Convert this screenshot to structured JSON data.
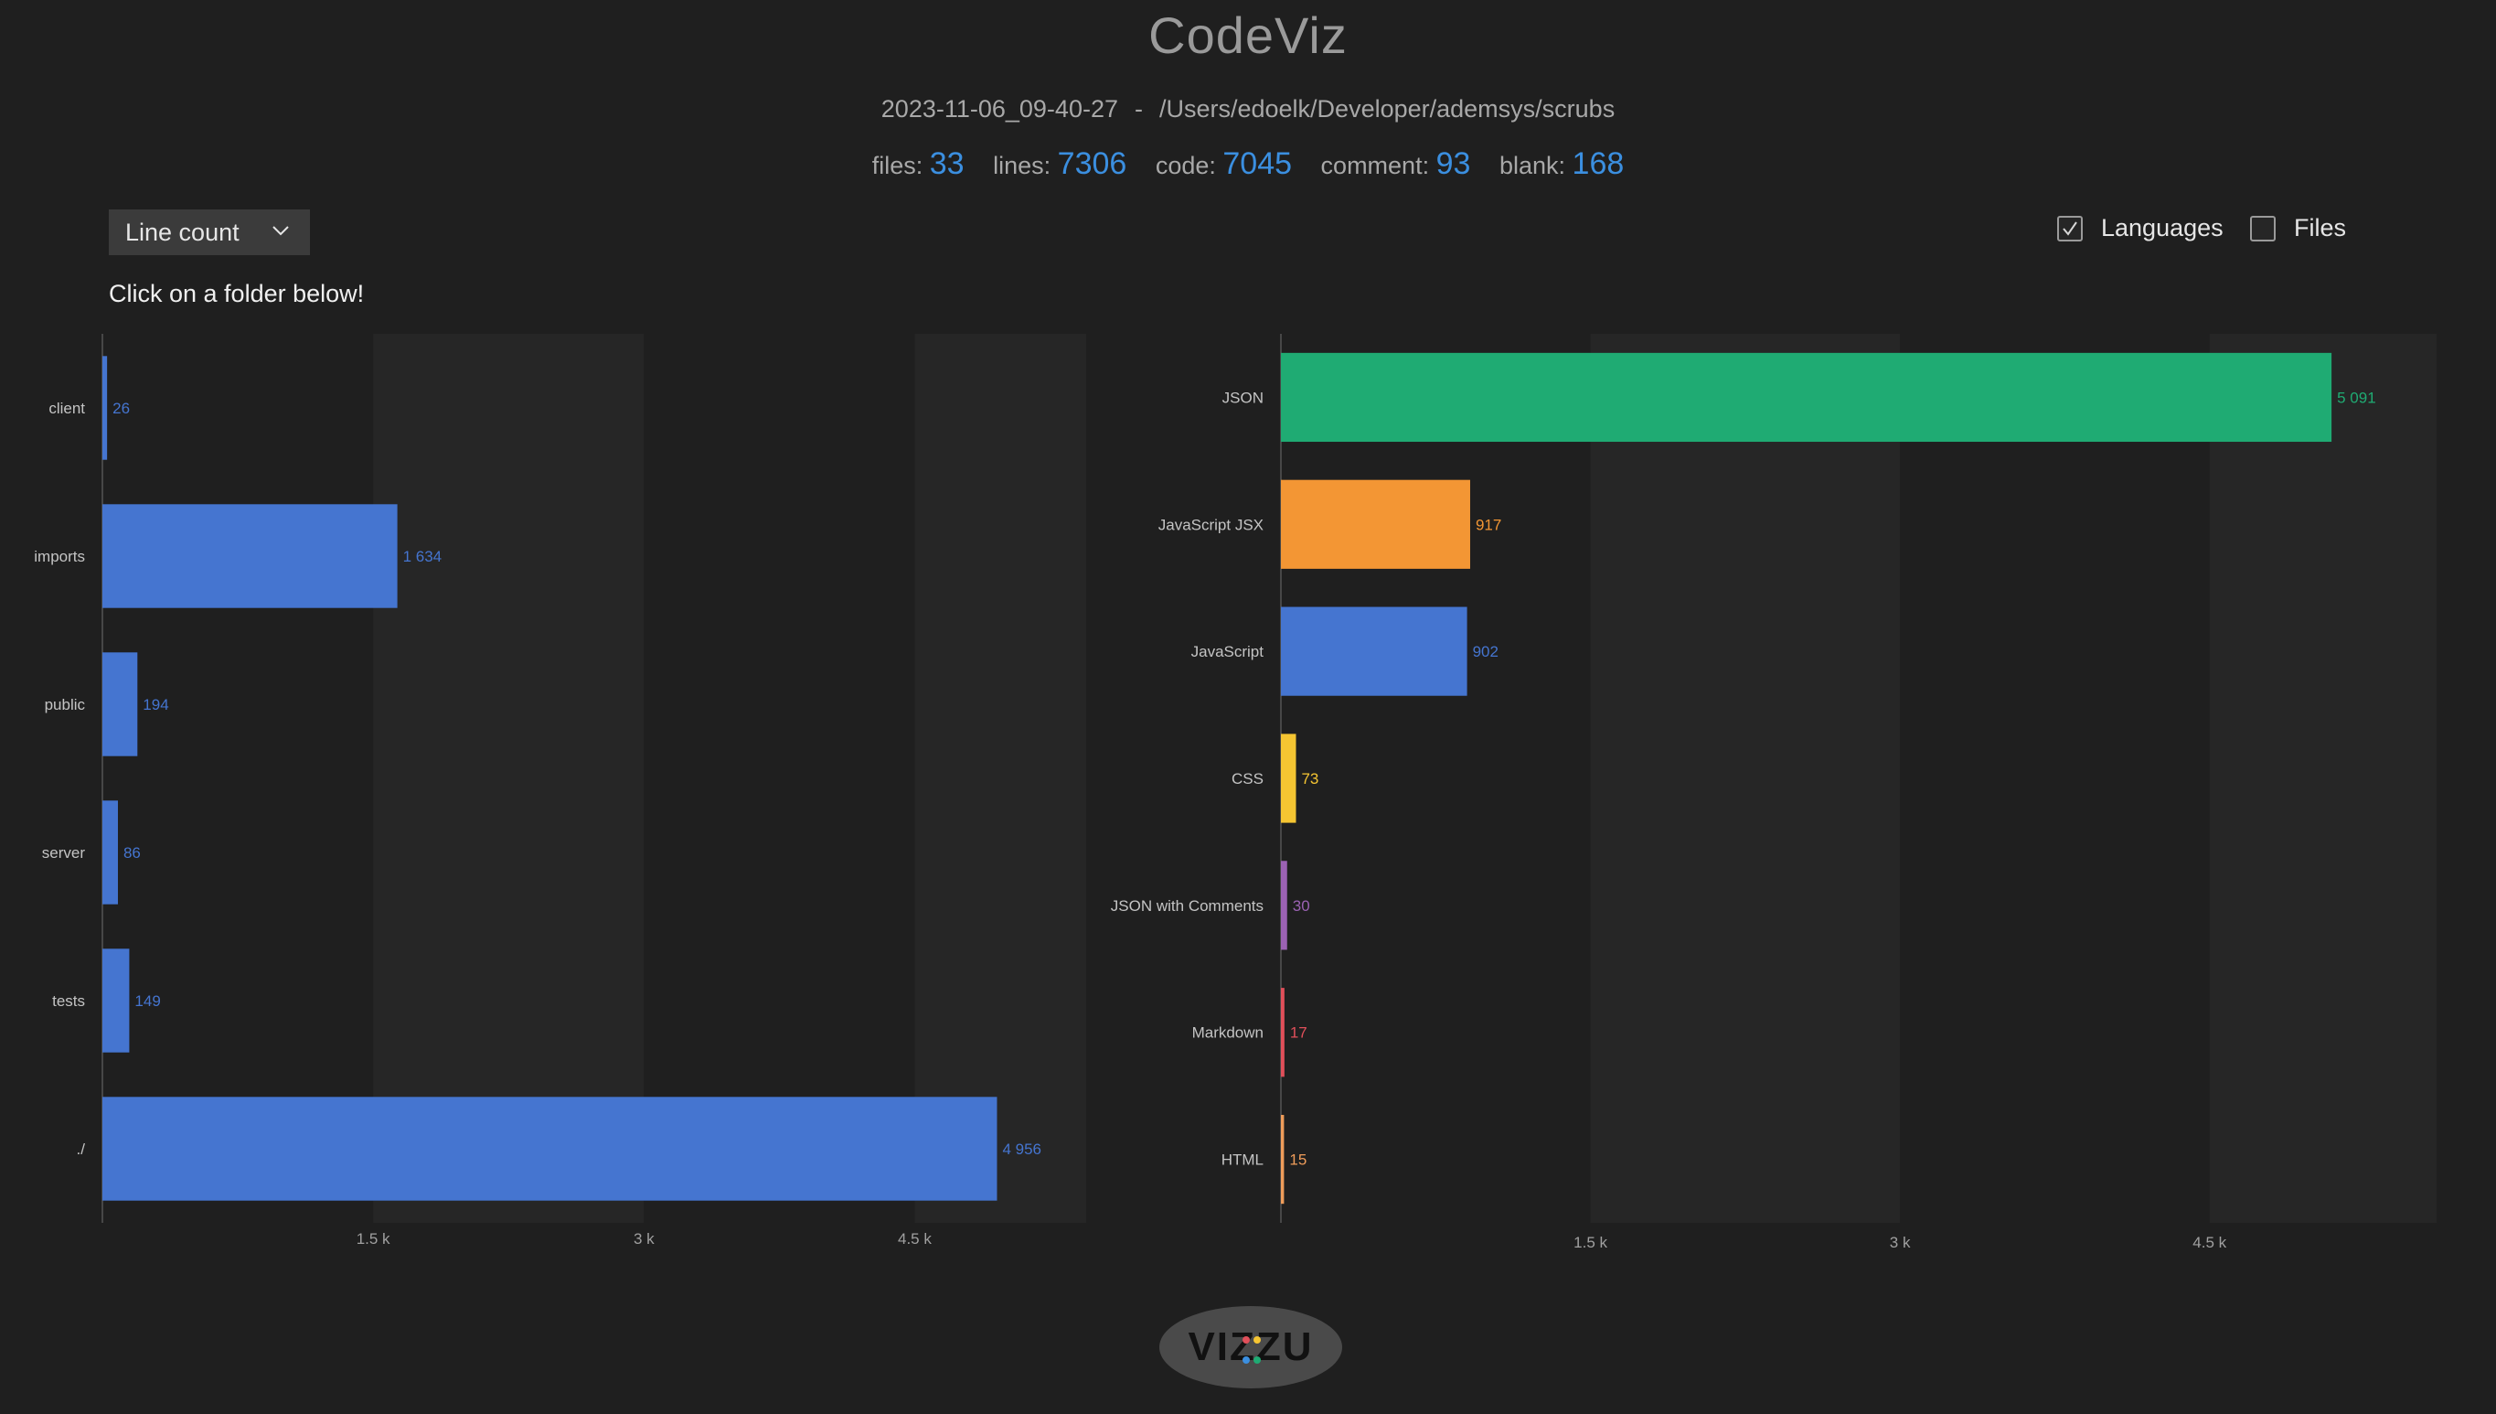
{
  "header": {
    "title": "CodeViz",
    "timestamp": "2023-11-06_09-40-27",
    "separator": "-",
    "path": "/Users/edoelk/Developer/ademsys/scrubs"
  },
  "stats": [
    {
      "label": "files:",
      "value": "33"
    },
    {
      "label": "lines:",
      "value": "7306"
    },
    {
      "label": "code:",
      "value": "7045"
    },
    {
      "label": "comment:",
      "value": "93"
    },
    {
      "label": "blank:",
      "value": "168"
    }
  ],
  "controls": {
    "metric_select_value": "Line count",
    "hint": "Click on a folder below!",
    "languages_label": "Languages",
    "languages_checked": true,
    "files_label": "Files",
    "files_checked": false
  },
  "logo": {
    "text": "VIZZU"
  },
  "colors": {
    "accent": "#3b8fe0",
    "folder_bar": "#4575d0",
    "band": "#262626",
    "axis": "#555555"
  },
  "chart_data": [
    {
      "type": "bar",
      "orientation": "horizontal",
      "title": "",
      "categories": [
        "client",
        "imports",
        "public",
        "server",
        "tests",
        "./"
      ],
      "values": [
        26,
        1634,
        194,
        86,
        149,
        4956
      ],
      "value_labels": [
        "26",
        "1 634",
        "194",
        "86",
        "149",
        "4 956"
      ],
      "xlim": [
        0,
        5450
      ],
      "xticks": [
        1500,
        3000,
        4500
      ],
      "xtick_labels": [
        "1.5 k",
        "3 k",
        "4.5 k"
      ],
      "xlabel": "",
      "ylabel": "",
      "grid": "alternating bands",
      "color": "#4575d0"
    },
    {
      "type": "bar",
      "orientation": "horizontal",
      "title": "",
      "categories": [
        "JSON",
        "JavaScript JSX",
        "JavaScript",
        "CSS",
        "JSON with Comments",
        "Markdown",
        "HTML"
      ],
      "values": [
        5091,
        917,
        902,
        73,
        30,
        17,
        15
      ],
      "value_labels": [
        "5 091",
        "917",
        "902",
        "73",
        "30",
        "17",
        "15"
      ],
      "colors": [
        "#1fab73",
        "#f39634",
        "#4575d0",
        "#f5c532",
        "#9b62b3",
        "#e04f5a",
        "#ee9c5a"
      ],
      "xlim": [
        0,
        5600
      ],
      "xticks": [
        1500,
        3000,
        4500
      ],
      "xtick_labels": [
        "1.5 k",
        "3 k",
        "4.5 k"
      ],
      "xlabel": "",
      "ylabel": "",
      "grid": "alternating bands"
    }
  ]
}
